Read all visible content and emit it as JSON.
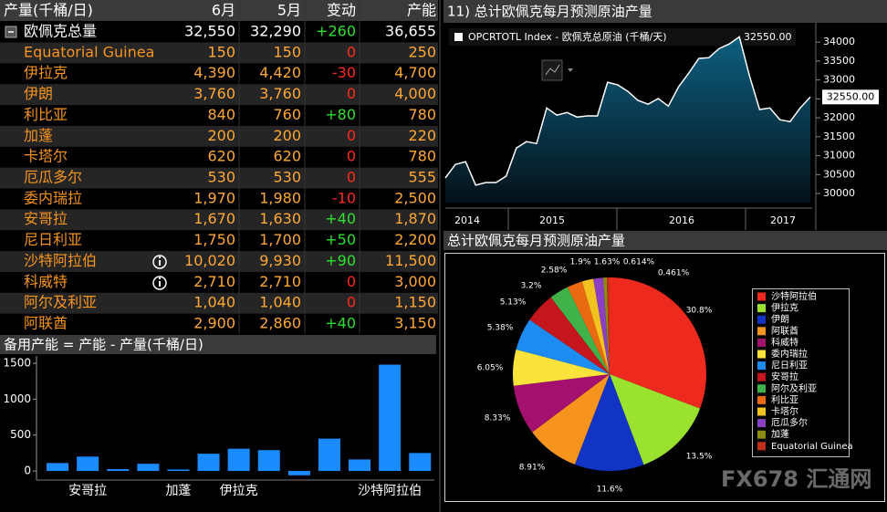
{
  "table": {
    "header": [
      "产量(千桶/日)",
      "6月",
      "5月",
      "变动",
      "产能"
    ],
    "rows": [
      [
        "欧佩克总量",
        "32,550",
        "32,290",
        "+260",
        "36,655"
      ],
      [
        "Equatorial Guinea",
        "150",
        "150",
        "0",
        "250"
      ],
      [
        "伊拉克",
        "4,390",
        "4,420",
        "-30",
        "4,700"
      ],
      [
        "伊朗",
        "3,760",
        "3,760",
        "0",
        "4,000"
      ],
      [
        "利比亚",
        "840",
        "760",
        "+80",
        "780"
      ],
      [
        "加蓬",
        "200",
        "200",
        "0",
        "220"
      ],
      [
        "卡塔尔",
        "620",
        "620",
        "0",
        "780"
      ],
      [
        "厄瓜多尔",
        "530",
        "530",
        "0",
        "555"
      ],
      [
        "委内瑞拉",
        "1,970",
        "1,980",
        "-10",
        "2,500"
      ],
      [
        "安哥拉",
        "1,670",
        "1,630",
        "+40",
        "1,870"
      ],
      [
        "尼日利亚",
        "1,750",
        "1,700",
        "+50",
        "2,200"
      ],
      [
        "沙特阿拉伯",
        "10,020",
        "9,930",
        "+90",
        "11,500"
      ],
      [
        "科威特",
        "2,710",
        "2,710",
        "0",
        "3,000"
      ],
      [
        "阿尔及利亚",
        "1,040",
        "1,040",
        "0",
        "1,150"
      ],
      [
        "阿联酋",
        "2,900",
        "2,860",
        "+40",
        "3,150"
      ]
    ]
  },
  "chart_data": [
    {
      "type": "bar",
      "title": "备用产能 = 产能 - 产量(千桶/日)",
      "categories": [
        null,
        "安哥拉",
        null,
        null,
        "加蓬",
        null,
        "伊拉克",
        null,
        null,
        null,
        null,
        "沙特阿拉伯",
        null
      ],
      "values": [
        110,
        200,
        25,
        100,
        20,
        240,
        310,
        290,
        -60,
        450,
        160,
        1480,
        250
      ],
      "color": "#1a8cff",
      "ylim": [
        -100,
        1650
      ],
      "yticks": [
        0,
        500,
        1000,
        1500
      ],
      "grid": false
    },
    {
      "type": "area",
      "title": "11) 总计欧佩克每月预测原油产量",
      "series": [
        {
          "name": "OPCRTOTL Index - 欧佩克总原油 (千桶/天)",
          "color": "#ffffff",
          "last_label": "32550.00",
          "values": [
            30410,
            30770,
            30840,
            30220,
            30290,
            30290,
            30460,
            31200,
            31370,
            31320,
            32260,
            32070,
            32140,
            32020,
            32050,
            32050,
            32940,
            32870,
            32700,
            32460,
            32360,
            32510,
            32310,
            32820,
            33180,
            33570,
            33590,
            33830,
            33950,
            34140,
            33110,
            32220,
            32260,
            31950,
            31900,
            32260,
            32550
          ]
        }
      ],
      "xlabels": [
        "2014",
        "2015",
        "2016",
        "2017"
      ],
      "ylim": [
        29760,
        34390
      ],
      "yticks": [
        30000,
        30500,
        31000,
        31500,
        32000,
        32500,
        33000,
        33500,
        34000
      ]
    },
    {
      "type": "pie",
      "title": "总计欧佩克每月预测原油产量",
      "categories": [
        "沙特阿拉伯",
        "伊拉克",
        "伊朗",
        "阿联酋",
        "科威特",
        "委内瑞拉",
        "尼日利亚",
        "安哥拉",
        "阿尔及利亚",
        "利比亚",
        "卡塔尔",
        "厄瓜多尔",
        "加蓬",
        "Equatorial Guinea"
      ],
      "values": [
        30.8,
        13.5,
        11.6,
        8.91,
        8.33,
        6.05,
        5.38,
        5.13,
        3.2,
        2.58,
        1.9,
        1.63,
        0.614,
        0.461
      ],
      "value_labels": [
        "30.8%",
        "13.5%",
        "11.6%",
        "8.91%",
        "8.33%",
        "6.05%",
        "5.38%",
        "5.13%",
        "3.2%",
        "2.58%",
        "1.9%",
        "1.63%",
        "0.614%",
        "0.461%"
      ],
      "colors": [
        "#ee2a1e",
        "#9be22e",
        "#1234c4",
        "#f7941d",
        "#a3106e",
        "#fae43c",
        "#1c8cf2",
        "#c4161c",
        "#3fb34a",
        "#ea6a12",
        "#f2c21e",
        "#8a3fc4",
        "#8c8c12",
        "#c2301a"
      ]
    }
  ],
  "watermark": "FX678 汇通网"
}
